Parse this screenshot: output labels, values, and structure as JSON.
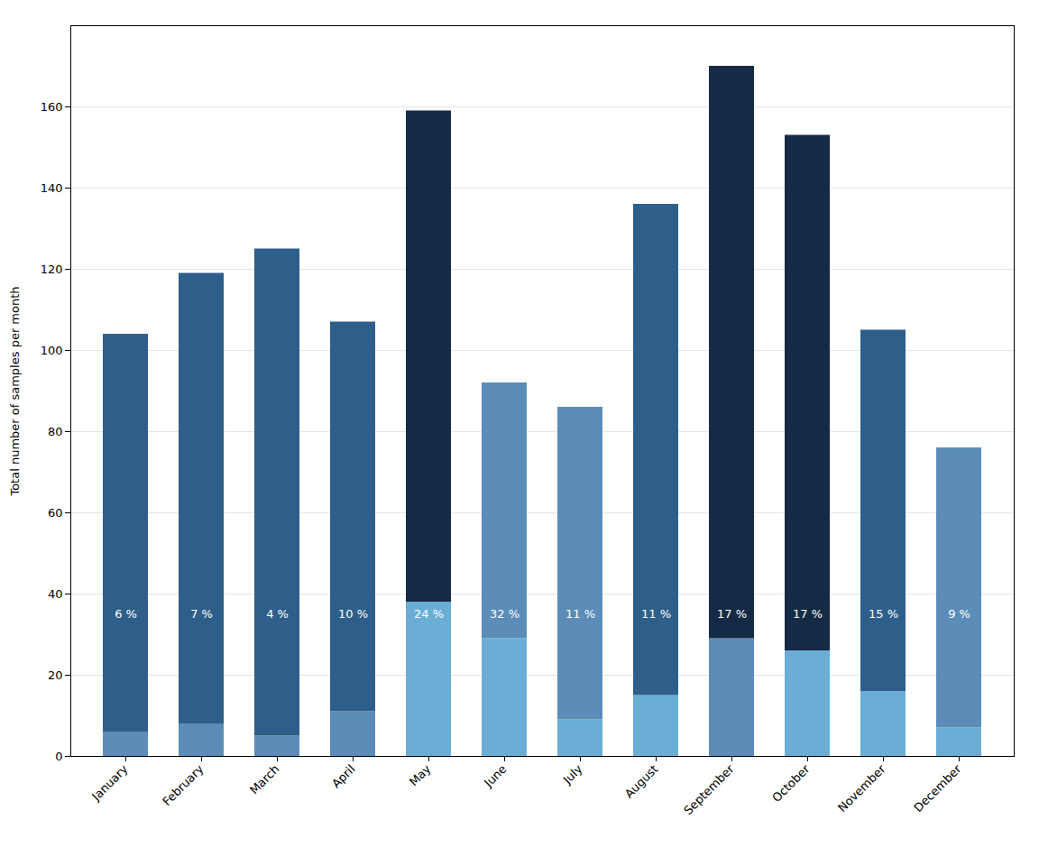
{
  "chart_data": {
    "type": "bar",
    "stacked": true,
    "categories": [
      "January",
      "February",
      "March",
      "April",
      "May",
      "June",
      "July",
      "August",
      "September",
      "October",
      "November",
      "December"
    ],
    "series": [
      {
        "colors": [
          "#5B8DB8",
          "#5B8DB8",
          "#5B8DB8",
          "#5B8DB8",
          "#6AAED6",
          "#6AAED6",
          "#6AAED6",
          "#6AAED6",
          "#5B8DB8",
          "#6AAED6",
          "#6AAED6",
          "#6AAED6"
        ],
        "values": [
          6,
          8,
          5,
          11,
          38,
          29,
          9,
          15,
          29,
          26,
          16,
          7
        ]
      },
      {
        "colors": [
          "#2E5F8A",
          "#2E5F8A",
          "#2E5F8A",
          "#2E5F8A",
          "#152B45",
          "#5B8DB8",
          "#5B8DB8",
          "#2E5F8A",
          "#152B45",
          "#152B45",
          "#2E5F8A",
          "#5B8DB8"
        ],
        "values": [
          98,
          111,
          120,
          96,
          121,
          63,
          77,
          121,
          141,
          127,
          89,
          69
        ]
      }
    ],
    "annotations": [
      {
        "category": "January",
        "y": 35,
        "text": "6 %"
      },
      {
        "category": "February",
        "y": 35,
        "text": "7 %"
      },
      {
        "category": "March",
        "y": 35,
        "text": "4 %"
      },
      {
        "category": "April",
        "y": 35,
        "text": "10 %"
      },
      {
        "category": "May",
        "y": 35,
        "text": "24 %"
      },
      {
        "category": "June",
        "y": 35,
        "text": "32 %"
      },
      {
        "category": "July",
        "y": 35,
        "text": "11 %"
      },
      {
        "category": "August",
        "y": 35,
        "text": "11 %"
      },
      {
        "category": "September",
        "y": 35,
        "text": "17 %"
      },
      {
        "category": "October",
        "y": 35,
        "text": "17 %"
      },
      {
        "category": "November",
        "y": 35,
        "text": "15 %"
      },
      {
        "category": "December",
        "y": 35,
        "text": "9 %"
      }
    ],
    "ylabel": "Total number of samples per month",
    "ylim": [
      0,
      180
    ],
    "yticks": [
      0,
      20,
      40,
      60,
      80,
      100,
      120,
      140,
      160
    ],
    "grid": true
  }
}
